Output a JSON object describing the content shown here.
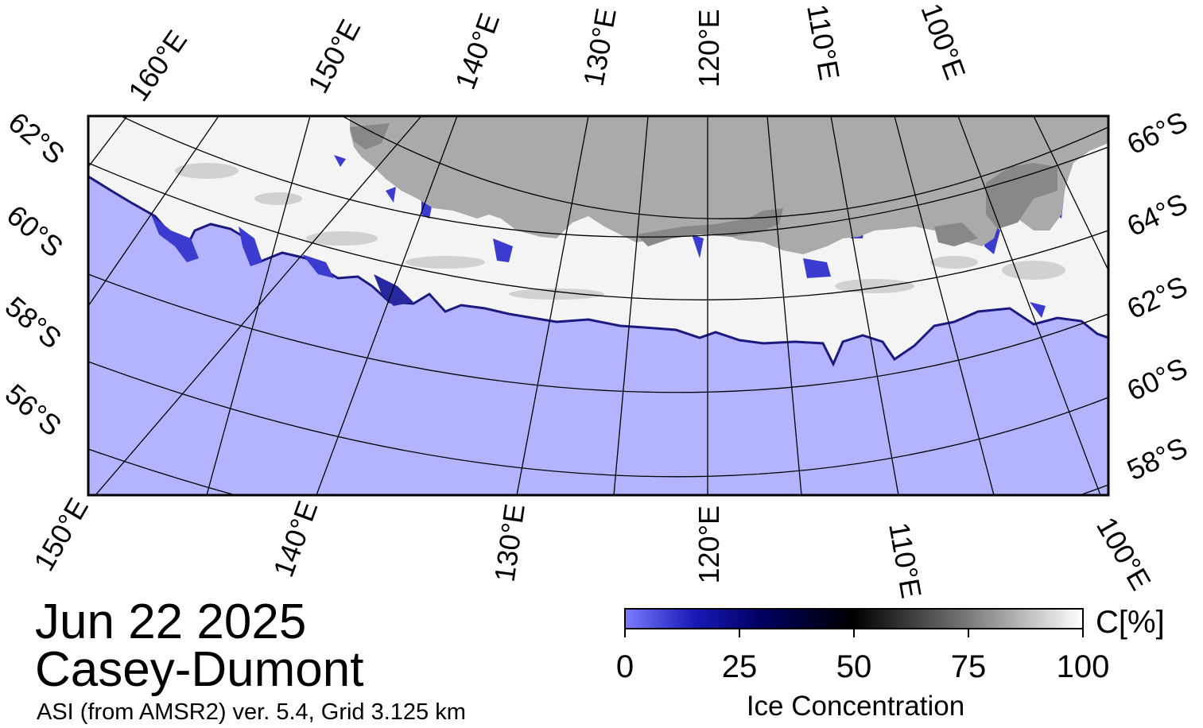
{
  "map": {
    "date": "Jun 22 2025",
    "region": "Casey-Dumont",
    "product": "ASI (from AMSR2) ver. 5.4,  Grid 3.125 km",
    "top_lon_labels": [
      "160°E",
      "150°E",
      "140°E",
      "130°E",
      "120°E",
      "110°E",
      "100°E"
    ],
    "bottom_lon_labels": [
      "150°E",
      "140°E",
      "130°E",
      "120°E",
      "110°E",
      "100°E"
    ],
    "left_lat_labels": [
      "62°S",
      "60°S",
      "58°S",
      "56°S"
    ],
    "right_lat_labels": [
      "66°S",
      "64°S",
      "62°S",
      "60°S",
      "58°S"
    ],
    "colors": {
      "open_water": "#b3b3ff",
      "land": "#aaaaaa",
      "ice_shelf": "#888888",
      "ice_full": "#ffffff",
      "ice_mid": "#000000",
      "ice_low": "#000080",
      "ice_zero": "#7070ff"
    }
  },
  "colorbar": {
    "title": "Ice Concentration",
    "unit": "C[%]",
    "ticks": [
      "0",
      "25",
      "50",
      "75",
      "100"
    ]
  }
}
